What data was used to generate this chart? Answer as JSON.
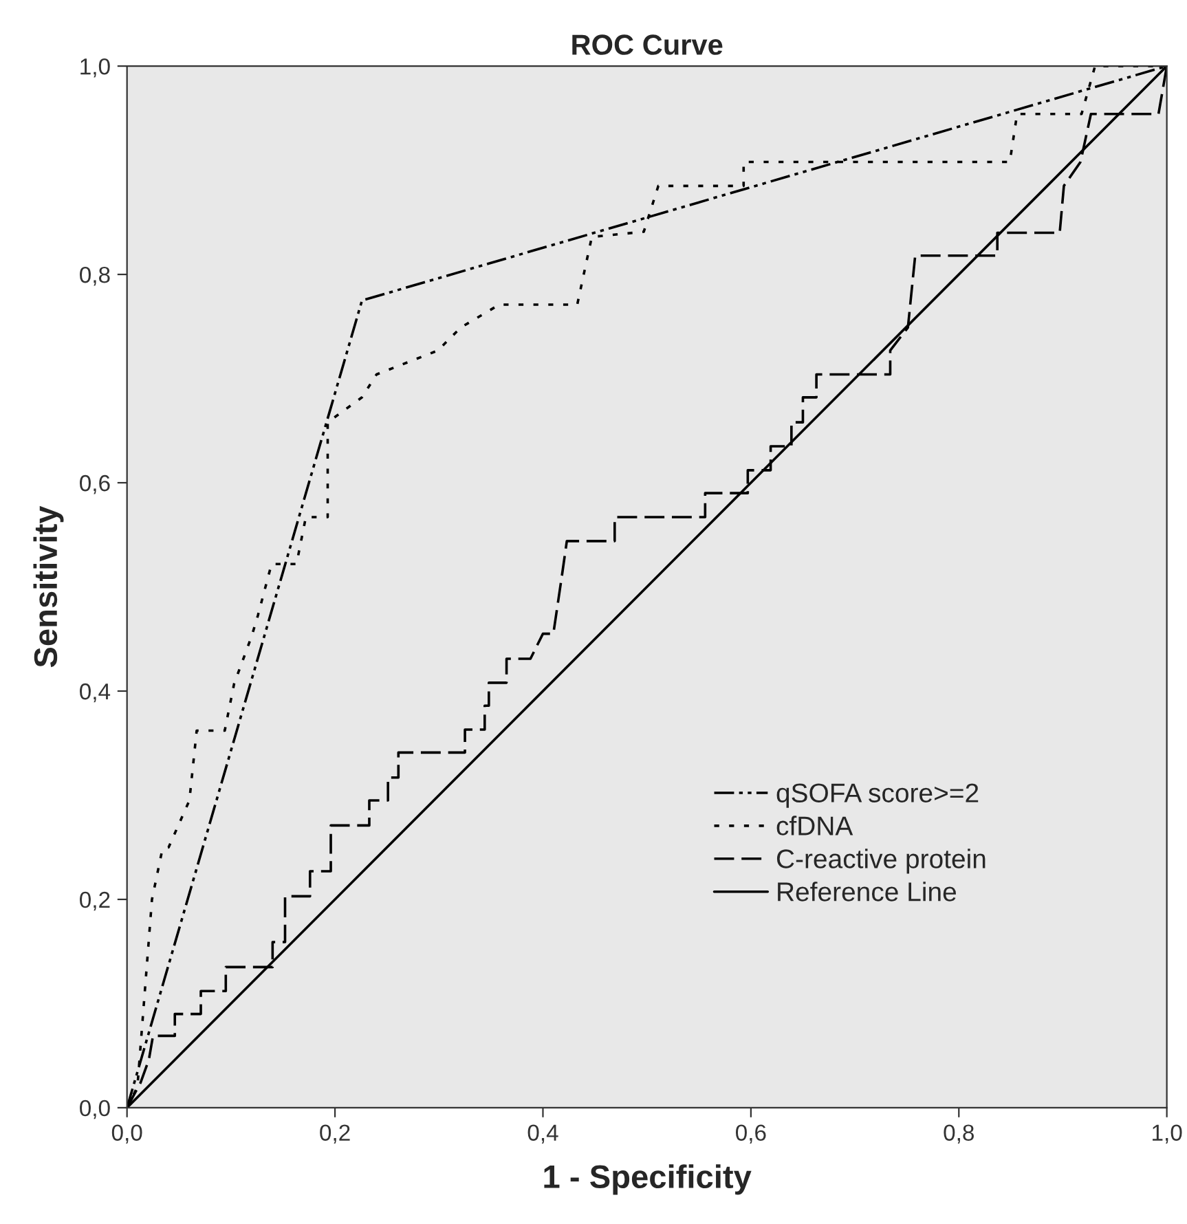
{
  "chart_data": {
    "type": "line",
    "title": "ROC Curve",
    "xlabel": "1 - Specificity",
    "ylabel": "Sensitivity",
    "xlim": [
      0,
      1
    ],
    "ylim": [
      0,
      1
    ],
    "xticks": [
      {
        "value": 0,
        "label": "0,0"
      },
      {
        "value": 0.2,
        "label": "0,2"
      },
      {
        "value": 0.4,
        "label": "0,4"
      },
      {
        "value": 0.6,
        "label": "0,6"
      },
      {
        "value": 0.8,
        "label": "0,8"
      },
      {
        "value": 1,
        "label": "1,0"
      }
    ],
    "yticks": [
      {
        "value": 0,
        "label": "0,0"
      },
      {
        "value": 0.2,
        "label": "0,2"
      },
      {
        "value": 0.4,
        "label": "0,4"
      },
      {
        "value": 0.6,
        "label": "0,6"
      },
      {
        "value": 0.8,
        "label": "0,8"
      },
      {
        "value": 1,
        "label": "1,0"
      }
    ],
    "legend": "lower right",
    "marker": "none",
    "series": [
      {
        "name": "qSOFA score>=2",
        "color": "#000000",
        "line_style": "dashdotdot",
        "x": [
          0,
          0.226,
          1
        ],
        "values": [
          0,
          0.775,
          1
        ]
      },
      {
        "name": "cfDNA",
        "color": "#000000",
        "line_style": "dotted",
        "x": [
          0,
          0.01,
          0.024,
          0.034,
          0.04,
          0.06,
          0.067,
          0.094,
          0.103,
          0.12,
          0.126,
          0.139,
          0.163,
          0.172,
          0.193,
          0.193,
          0.226,
          0.24,
          0.299,
          0.321,
          0.358,
          0.433,
          0.447,
          0.497,
          0.511,
          0.593,
          0.593,
          0.849,
          0.856,
          0.918,
          0.931,
          1
        ],
        "values": [
          0,
          0.02,
          0.2,
          0.248,
          0.25,
          0.295,
          0.362,
          0.362,
          0.407,
          0.453,
          0.473,
          0.522,
          0.522,
          0.567,
          0.567,
          0.658,
          0.682,
          0.704,
          0.727,
          0.749,
          0.771,
          0.771,
          0.836,
          0.841,
          0.885,
          0.885,
          0.908,
          0.908,
          0.954,
          0.954,
          1,
          1
        ]
      },
      {
        "name": "C-reactive protein",
        "color": "#000000",
        "line_style": "dashed",
        "x": [
          0,
          0.013,
          0.021,
          0.025,
          0.046,
          0.046,
          0.071,
          0.071,
          0.095,
          0.095,
          0.14,
          0.14,
          0.152,
          0.152,
          0.176,
          0.176,
          0.196,
          0.196,
          0.233,
          0.233,
          0.251,
          0.251,
          0.261,
          0.261,
          0.325,
          0.325,
          0.344,
          0.344,
          0.348,
          0.348,
          0.365,
          0.365,
          0.388,
          0.4,
          0.41,
          0.418,
          0.423,
          0.469,
          0.469,
          0.556,
          0.556,
          0.597,
          0.597,
          0.619,
          0.619,
          0.639,
          0.639,
          0.65,
          0.65,
          0.663,
          0.663,
          0.734,
          0.734,
          0.751,
          0.758,
          0.837,
          0.837,
          0.897,
          0.901,
          0.917,
          0.927,
          0.992,
          1
        ],
        "values": [
          0,
          0.024,
          0.046,
          0.069,
          0.069,
          0.09,
          0.09,
          0.112,
          0.112,
          0.135,
          0.135,
          0.159,
          0.159,
          0.203,
          0.203,
          0.227,
          0.227,
          0.271,
          0.271,
          0.295,
          0.295,
          0.317,
          0.317,
          0.341,
          0.341,
          0.363,
          0.363,
          0.386,
          0.386,
          0.408,
          0.408,
          0.431,
          0.431,
          0.455,
          0.455,
          0.509,
          0.544,
          0.544,
          0.567,
          0.567,
          0.59,
          0.59,
          0.612,
          0.612,
          0.635,
          0.635,
          0.658,
          0.658,
          0.682,
          0.682,
          0.704,
          0.704,
          0.727,
          0.749,
          0.818,
          0.818,
          0.84,
          0.84,
          0.885,
          0.908,
          0.954,
          0.954,
          1
        ]
      },
      {
        "name": "Reference Line",
        "color": "#000000",
        "line_style": "solid",
        "x": [
          0,
          1
        ],
        "values": [
          0,
          1
        ]
      }
    ]
  }
}
